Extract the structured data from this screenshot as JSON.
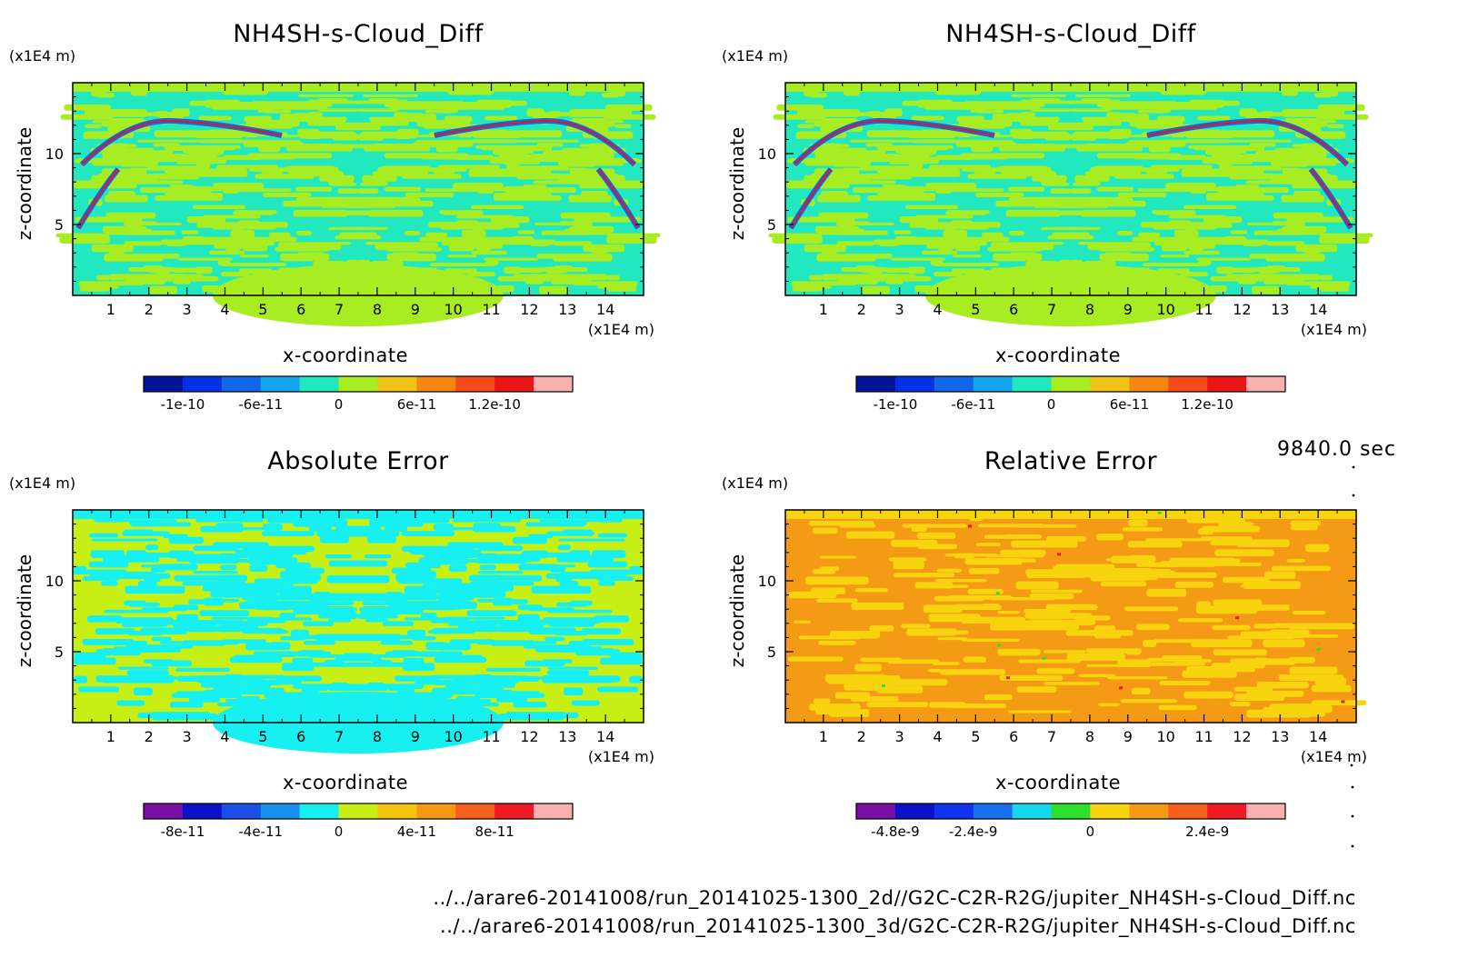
{
  "time_label": "9840.0 sec",
  "footer": {
    "line1": "../../arare6-20141008/run_20141025-1300_2d//G2C-C2R-R2G/jupiter_NH4SH-s-Cloud_Diff.nc",
    "line2": "../../arare6-20141008/run_20141025-1300_3d/G2C-C2R-R2G/jupiter_NH4SH-s-Cloud_Diff.nc"
  },
  "chart_data": [
    {
      "type": "heatmap",
      "title": "NH4SH-s-Cloud_Diff",
      "xlabel": "x-coordinate",
      "ylabel": "z-coordinate",
      "x_unit": "(x1E4 m)",
      "y_unit": "(x1E4 m)",
      "xlim": [
        0,
        15
      ],
      "ylim": [
        0,
        15
      ],
      "xticks": [
        "1",
        "2",
        "3",
        "4",
        "5",
        "6",
        "7",
        "8",
        "9",
        "10",
        "11",
        "12",
        "13",
        "14"
      ],
      "yticks": [
        "5",
        "10"
      ],
      "dominant_color": "#22e8c0",
      "secondary_color": "#a8ec22",
      "palette": [
        "#00139a",
        "#0031e5",
        "#1068e8",
        "#11a6ef",
        "#22e8c0",
        "#a8ec22",
        "#f2c216",
        "#f68812",
        "#f24a18",
        "#ea1616",
        "#f7b1b1"
      ],
      "colorbar_ticks": [
        "-1e-10",
        "-6e-11",
        "0",
        "6e-11",
        "1.2e-10"
      ]
    },
    {
      "type": "heatmap",
      "title": "NH4SH-s-Cloud_Diff",
      "xlabel": "x-coordinate",
      "ylabel": "z-coordinate",
      "x_unit": "(x1E4 m)",
      "y_unit": "(x1E4 m)",
      "xlim": [
        0,
        15
      ],
      "ylim": [
        0,
        15
      ],
      "xticks": [
        "1",
        "2",
        "3",
        "4",
        "5",
        "6",
        "7",
        "8",
        "9",
        "10",
        "11",
        "12",
        "13",
        "14"
      ],
      "yticks": [
        "5",
        "10"
      ],
      "dominant_color": "#22e8c0",
      "secondary_color": "#a8ec22",
      "palette": [
        "#00139a",
        "#0031e5",
        "#1068e8",
        "#11a6ef",
        "#22e8c0",
        "#a8ec22",
        "#f2c216",
        "#f68812",
        "#f24a18",
        "#ea1616",
        "#f7b1b1"
      ],
      "colorbar_ticks": [
        "-1e-10",
        "-6e-11",
        "0",
        "6e-11",
        "1.2e-10"
      ]
    },
    {
      "type": "heatmap",
      "title": "Absolute Error",
      "xlabel": "x-coordinate",
      "ylabel": "z-coordinate",
      "x_unit": "(x1E4 m)",
      "y_unit": "(x1E4 m)",
      "xlim": [
        0,
        15
      ],
      "ylim": [
        0,
        15
      ],
      "xticks": [
        "1",
        "2",
        "3",
        "4",
        "5",
        "6",
        "7",
        "8",
        "9",
        "10",
        "11",
        "12",
        "13",
        "14"
      ],
      "yticks": [
        "5",
        "10"
      ],
      "dominant_color": "#c8ef14",
      "secondary_color": "#16f0f0",
      "palette": [
        "#7a0fa8",
        "#0a12c8",
        "#1b4fe6",
        "#1890ee",
        "#16f0f0",
        "#c8ef14",
        "#f4c30e",
        "#f69812",
        "#f4601a",
        "#ee1b25",
        "#f7b1b1"
      ],
      "colorbar_ticks": [
        "-8e-11",
        "-4e-11",
        "0",
        "4e-11",
        "8e-11"
      ]
    },
    {
      "type": "heatmap",
      "title": "Relative Error",
      "xlabel": "x-coordinate",
      "ylabel": "z-coordinate",
      "x_unit": "(x1E4 m)",
      "y_unit": "(x1E4 m)",
      "xlim": [
        0,
        15
      ],
      "ylim": [
        0,
        15
      ],
      "xticks": [
        "1",
        "2",
        "3",
        "4",
        "5",
        "6",
        "7",
        "8",
        "9",
        "10",
        "11",
        "12",
        "13",
        "14"
      ],
      "yticks": [
        "5",
        "10"
      ],
      "dominant_color": "#f49a14",
      "secondary_color": "#f8d40e",
      "palette": [
        "#7a0fa8",
        "#0a12c8",
        "#0f33f0",
        "#1870ec",
        "#16d6ee",
        "#2ee02e",
        "#f8d40e",
        "#f49a14",
        "#f4601a",
        "#ee1b25",
        "#f7b1b1"
      ],
      "colorbar_ticks": [
        "-4.8e-9",
        "-2.4e-9",
        "0",
        "2.4e-9"
      ]
    }
  ]
}
